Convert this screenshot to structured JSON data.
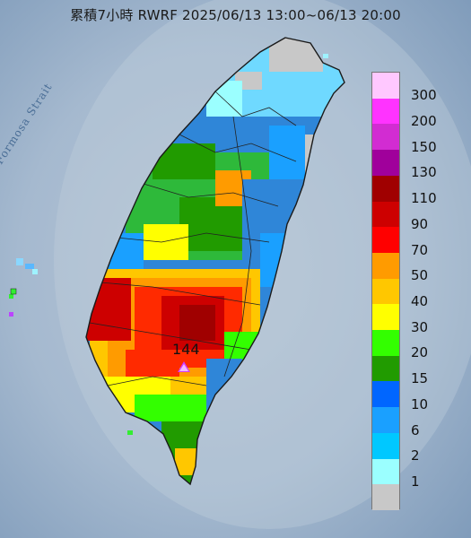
{
  "title": "累積7小時 RWRF 2025/06/13 13:00~06/13 20:00",
  "strait_label": "Formosa Strait",
  "peak_label": "144",
  "legend": {
    "labels": [
      "300",
      "200",
      "150",
      "130",
      "110",
      "90",
      "70",
      "50",
      "40",
      "30",
      "20",
      "15",
      "10",
      "6",
      "2",
      "1"
    ],
    "colors": [
      "#ffc8ff",
      "#ff33ff",
      "#d22cd2",
      "#a0009b",
      "#a00000",
      "#cd0000",
      "#ff0000",
      "#ff9b00",
      "#ffc700",
      "#ffff00",
      "#33ff00",
      "#219b00",
      "#0066ff",
      "#1aa0ff",
      "#00c8ff",
      "#9bffff",
      "#c8c8c8"
    ]
  },
  "colors": {
    "sea_dark": "#7f9bba",
    "sea_light": "#b7c6d6",
    "land_base": "#2f86d8"
  }
}
